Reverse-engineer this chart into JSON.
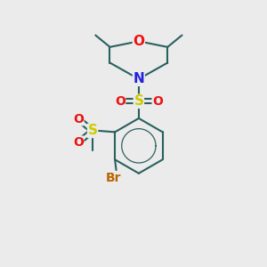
{
  "bg_color": "#ebebeb",
  "atom_colors": {
    "C": "#000000",
    "N": "#2222dd",
    "O": "#ee1111",
    "S": "#cccc00",
    "Br": "#bb6600"
  },
  "bond_color": "#2a6060",
  "lw": 1.5,
  "font_size_atom": 10
}
